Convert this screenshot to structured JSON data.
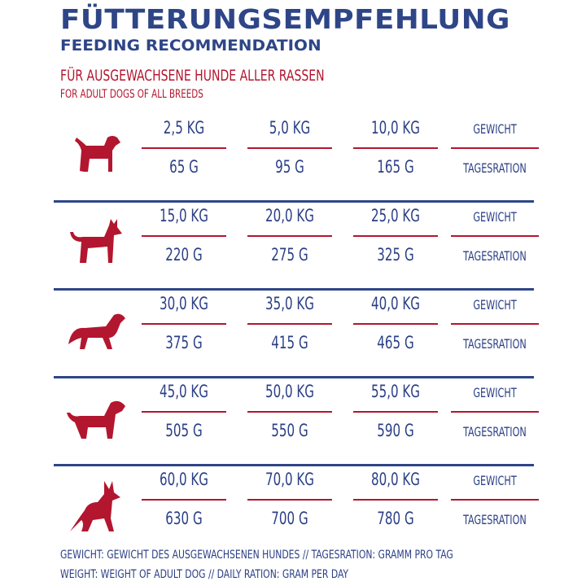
{
  "title": "FÜTTERUNGSEMPFEHLUNG",
  "subtitle": "FEEDING RECOMMENDATION",
  "audience_de": "FÜR AUSGEWACHSENE HUNDE ALLER RASSEN",
  "audience_en": "FOR ADULT DOGS OF ALL BREEDS",
  "labels": {
    "weight": "GEWICHT",
    "ration": "TAGESRATION"
  },
  "rows": [
    {
      "weights": [
        "2,5 KG",
        "5,0 KG",
        "10,0 KG"
      ],
      "rations": [
        "65 G",
        "95 G",
        "165 G"
      ]
    },
    {
      "weights": [
        "15,0 KG",
        "20,0 KG",
        "25,0 KG"
      ],
      "rations": [
        "220 G",
        "275 G",
        "325 G"
      ]
    },
    {
      "weights": [
        "30,0 KG",
        "35,0 KG",
        "40,0 KG"
      ],
      "rations": [
        "375 G",
        "415 G",
        "465 G"
      ]
    },
    {
      "weights": [
        "45,0 KG",
        "50,0 KG",
        "55,0 KG"
      ],
      "rations": [
        "505 G",
        "550 G",
        "590 G"
      ]
    },
    {
      "weights": [
        "60,0 KG",
        "70,0 KG",
        "80,0 KG"
      ],
      "rations": [
        "630 G",
        "700 G",
        "780 G"
      ]
    }
  ],
  "footer_de": "GEWICHT: GEWICHT DES AUSGEWACHSENEN HUNDES // TAGESRATION: GRAMM PRO TAG",
  "footer_en": "WEIGHT: WEIGHT OF ADULT DOG // DAILY RATION: GRAM PER DAY",
  "colors": {
    "blue": "#2e4587",
    "red": "#b3162f"
  }
}
